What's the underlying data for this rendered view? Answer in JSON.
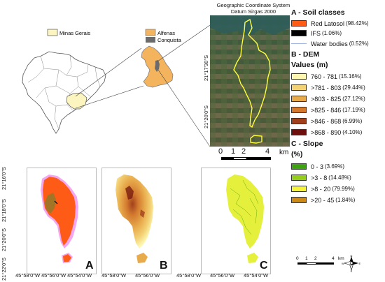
{
  "inset": {
    "minas_gerais_label": "Minas Gerais",
    "alfenas_label": "Alfenas",
    "conquista_label": "Conquista",
    "colors": {
      "minas_gerais": "#fcf5bf",
      "alfenas": "#f4b45e",
      "conquista": "#6b6b6b",
      "brazil": "#ffffff"
    }
  },
  "satellite": {
    "title_line1": "Geographic Coordinate System",
    "title_line2": "Datum Sirgas 2000",
    "lat_labels": [
      "21°17'30\"S",
      "21°20'0\"S"
    ],
    "scale": {
      "ticks": [
        "0",
        "1",
        "2",
        "4"
      ],
      "unit": "km"
    },
    "boundary_color": "#ffff3b"
  },
  "legend": {
    "soil_title": "A - Soil classes",
    "soil": [
      {
        "label": "Red Latosol",
        "pct": "(98.42%)",
        "color": "#fe5b16"
      },
      {
        "label": "IFS",
        "pct": "(1.06%)",
        "color": "#000000"
      },
      {
        "label": "Water bodies",
        "pct": "(0.52%)",
        "color": "#c7d7f4"
      }
    ],
    "dem_title": "B - DEM",
    "dem_subtitle": "Values (m)",
    "dem": [
      {
        "label": "760 - 781",
        "pct": "(15.16%)",
        "color": "#fdf7b2"
      },
      {
        "label": ">781 - 803",
        "pct": "(29.44%)",
        "color": "#f3d175"
      },
      {
        "label": ">803 - 825",
        "pct": "(27.12%)",
        "color": "#e8ab4c"
      },
      {
        "label": ">825 - 846",
        "pct": "(17.19%)",
        "color": "#d37a2f"
      },
      {
        "label": ">846 - 868",
        "pct": "(6.99%)",
        "color": "#a1401d"
      },
      {
        "label": ">868 - 890",
        "pct": "(4.10%)",
        "color": "#6d0f0c"
      }
    ],
    "slope_title": "C - Slope",
    "slope_subtitle": "(%)",
    "slope": [
      {
        "label": "0 - 3",
        "pct": "(3.69%)",
        "color": "#3ca30e"
      },
      {
        "label": ">3 - 8",
        "pct": "(14.48%)",
        "color": "#95cd1b"
      },
      {
        "label": ">8 - 20",
        "pct": "(79.99%)",
        "color": "#f5f43b"
      },
      {
        "label": ">20 - 45",
        "pct": "(1.84%)",
        "color": "#cd8a16"
      }
    ]
  },
  "maps": {
    "panel_labels": [
      "A",
      "B",
      "C"
    ],
    "lat_labels": [
      "21°16'0\"S",
      "21°18'0\"S",
      "21°20'0\"S",
      "21°22'0\"S"
    ],
    "lon_labels": [
      "45°58'0\"W",
      "45°56'0\"W",
      "45°54'0\"W"
    ],
    "colors": {
      "soil": "#fe5b16",
      "soil_halo": "#f4a7f0",
      "dem": "#e6bd66",
      "slope": "#e4f03c"
    }
  },
  "bottom_scale": {
    "ticks": [
      "0",
      "1",
      "2",
      "4"
    ],
    "unit": "km"
  },
  "north_arrow": {
    "n": "N",
    "s": "S",
    "e": "E",
    "w": "W"
  }
}
